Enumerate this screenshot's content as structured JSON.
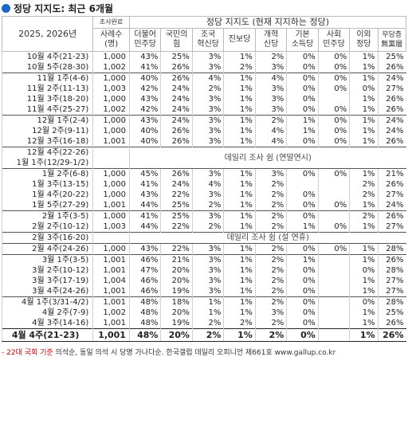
{
  "title": "정당 지지도: 최근 6개월",
  "header": {
    "period_label": "2025, 2026년",
    "sample_top": "조사완료",
    "sample_bottom": "사례수\n(명)",
    "group_label": "정당 지지도 (현재 지지하는 정당)",
    "parties": [
      "더불어\n민주당",
      "국민의\n힘",
      "조국\n혁신당",
      "진보당",
      "개혁\n신당",
      "기본\n소득당",
      "사회\n민주당",
      "이외\n정당",
      "무당층\n無黨層"
    ]
  },
  "sections": [
    {
      "rows": [
        {
          "period": "10월 4주(21-23)",
          "n": "1,000",
          "v": [
            "43%",
            "25%",
            "3%",
            "1%",
            "2%",
            "0%",
            "0%",
            "1%",
            "25%"
          ]
        },
        {
          "period": "10월 5주(28-30)",
          "n": "1,002",
          "v": [
            "41%",
            "26%",
            "3%",
            "2%",
            "3%",
            "0%",
            "0%",
            "1%",
            "26%"
          ]
        }
      ]
    },
    {
      "rows": [
        {
          "period": "11월 1주(4-6)",
          "n": "1,000",
          "v": [
            "40%",
            "26%",
            "4%",
            "1%",
            "4%",
            "0%",
            "0%",
            "1%",
            "24%"
          ]
        },
        {
          "period": "11월 2주(11-13)",
          "n": "1,003",
          "v": [
            "42%",
            "24%",
            "2%",
            "1%",
            "3%",
            "0%",
            "0%",
            "0%",
            "27%"
          ]
        },
        {
          "period": "11월 3주(18-20)",
          "n": "1,000",
          "v": [
            "43%",
            "24%",
            "3%",
            "1%",
            "3%",
            "0%",
            "",
            "1%",
            "26%"
          ]
        },
        {
          "period": "11월 4주(25-27)",
          "n": "1,002",
          "v": [
            "42%",
            "24%",
            "3%",
            "1%",
            "3%",
            "0%",
            "0%",
            "1%",
            "26%"
          ]
        }
      ]
    },
    {
      "rows": [
        {
          "period": "12월 1주(2-4)",
          "n": "1,000",
          "v": [
            "43%",
            "24%",
            "3%",
            "1%",
            "2%",
            "1%",
            "0%",
            "1%",
            "24%"
          ]
        },
        {
          "period": "12월 2주(9-11)",
          "n": "1,000",
          "v": [
            "40%",
            "26%",
            "3%",
            "1%",
            "4%",
            "1%",
            "0%",
            "1%",
            "24%"
          ]
        },
        {
          "period": "12월 3주(16-18)",
          "n": "1,001",
          "v": [
            "40%",
            "26%",
            "3%",
            "1%",
            "4%",
            "0%",
            "0%",
            "1%",
            "26%"
          ]
        }
      ]
    }
  ],
  "note1": {
    "period_a": "12월 4주(22-26)",
    "period_b": "1월 1주(12/29-1/2)",
    "text": "데일리 조사 쉼 (연말연시)"
  },
  "sections2": [
    {
      "rows": [
        {
          "period": "1월 2주(6-8)",
          "n": "1,000",
          "v": [
            "45%",
            "26%",
            "3%",
            "1%",
            "3%",
            "0%",
            "0%",
            "1%",
            "21%"
          ]
        },
        {
          "period": "1월 3주(13-15)",
          "n": "1,000",
          "v": [
            "41%",
            "24%",
            "4%",
            "1%",
            "2%",
            "",
            "",
            "2%",
            "26%"
          ]
        },
        {
          "period": "1월 4주(20-22)",
          "n": "1,000",
          "v": [
            "43%",
            "22%",
            "3%",
            "1%",
            "2%",
            "0%",
            "",
            "2%",
            "27%"
          ]
        },
        {
          "period": "1월 5주(27-29)",
          "n": "1,001",
          "v": [
            "44%",
            "25%",
            "2%",
            "1%",
            "2%",
            "0%",
            "0%",
            "1%",
            "24%"
          ]
        }
      ]
    },
    {
      "rows": [
        {
          "period": "2월 1주(3-5)",
          "n": "1,000",
          "v": [
            "41%",
            "25%",
            "3%",
            "1%",
            "2%",
            "0%",
            "",
            "2%",
            "26%"
          ]
        },
        {
          "period": "2월 2주(10-12)",
          "n": "1,003",
          "v": [
            "44%",
            "22%",
            "2%",
            "1%",
            "2%",
            "1%",
            "0%",
            "1%",
            "27%"
          ]
        }
      ]
    }
  ],
  "note2": {
    "period": "2월 3주(16-20)",
    "text": "데일리 조사 쉼 (설 연휴)"
  },
  "sections3": [
    {
      "rows": [
        {
          "period": "2월 4주(24-26)",
          "n": "1,000",
          "v": [
            "43%",
            "22%",
            "3%",
            "1%",
            "2%",
            "0%",
            "0%",
            "1%",
            "28%"
          ]
        }
      ]
    },
    {
      "rows": [
        {
          "period": "3월 1주(3-5)",
          "n": "1,001",
          "v": [
            "46%",
            "21%",
            "3%",
            "1%",
            "2%",
            "1%",
            "",
            "1%",
            "26%"
          ]
        },
        {
          "period": "3월 2주(10-12)",
          "n": "1,001",
          "v": [
            "47%",
            "20%",
            "3%",
            "1%",
            "2%",
            "0%",
            "",
            "0%",
            "28%"
          ]
        },
        {
          "period": "3월 3주(17-19)",
          "n": "1,004",
          "v": [
            "46%",
            "20%",
            "3%",
            "1%",
            "2%",
            "0%",
            "",
            "1%",
            "27%"
          ]
        },
        {
          "period": "3월 4주(24-26)",
          "n": "1,001",
          "v": [
            "46%",
            "19%",
            "3%",
            "1%",
            "2%",
            "0%",
            "",
            "1%",
            "27%"
          ]
        }
      ]
    },
    {
      "rows": [
        {
          "period": "4월 1주(3/31-4/2)",
          "n": "1,001",
          "v": [
            "48%",
            "18%",
            "1%",
            "1%",
            "2%",
            "0%",
            "",
            "0%",
            "28%"
          ]
        },
        {
          "period": "4월 2주(7-9)",
          "n": "1,002",
          "v": [
            "48%",
            "20%",
            "1%",
            "1%",
            "3%",
            "0%",
            "",
            "1%",
            "25%"
          ]
        },
        {
          "period": "4월 3주(14-16)",
          "n": "1,001",
          "v": [
            "48%",
            "19%",
            "2%",
            "2%",
            "2%",
            "0%",
            "",
            "1%",
            "26%"
          ]
        }
      ]
    }
  ],
  "final": {
    "period": "4월 4주(21-23)",
    "n": "1,001",
    "v": [
      "48%",
      "20%",
      "2%",
      "1%",
      "2%",
      "0%",
      "",
      "1%",
      "26%"
    ]
  },
  "footer": {
    "red": "- 22대 국회 기준",
    "text": " 의석순, 동일 의석 시 당명 가나다순. 한국갤럽 데일리 오피니언 제661호 www.gallup.co.kr"
  }
}
